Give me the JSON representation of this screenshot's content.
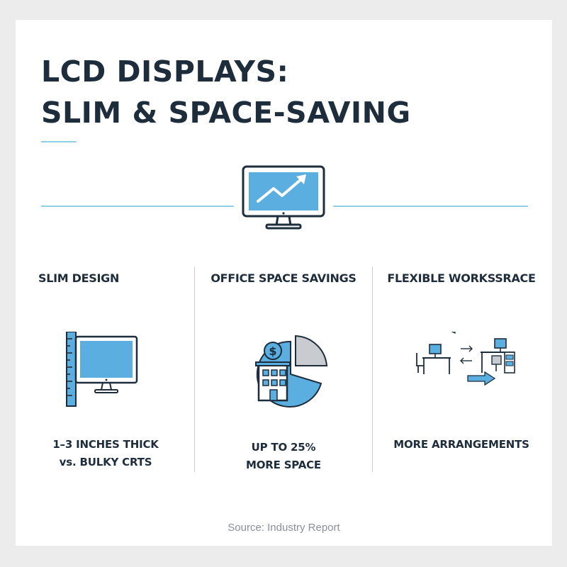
{
  "title": {
    "line1": "LCD DISPLAYS:",
    "line2": "SLIM & SPACE-SAVING"
  },
  "hero": {
    "icon": "monitor-trend-up-icon"
  },
  "columns": [
    {
      "heading": "SLIM DESIGN",
      "icon": "monitor-ruler-icon",
      "caption_line1": "1–3 INCHES THICK",
      "caption_line2": "vs. BULKY CRTS"
    },
    {
      "heading": "OFFICE SPACE SAVINGS",
      "icon": "building-pie-chart-icon",
      "caption_line1": "UP TO 25%",
      "caption_line2": "MORE SPACE"
    },
    {
      "heading": "FLEXIBLE WORKSSRACE",
      "icon": "workstation-arrange-icon",
      "caption_line1": "MORE ARRANGEMENTS",
      "caption_line2": ""
    }
  ],
  "source": "Source: Industry Report",
  "colors": {
    "heading": "#1e2d3c",
    "accent": "#8fd0e6",
    "icon_fill": "#5aaee0",
    "icon_stroke": "#1e2d3c",
    "muted": "#8a9099"
  }
}
